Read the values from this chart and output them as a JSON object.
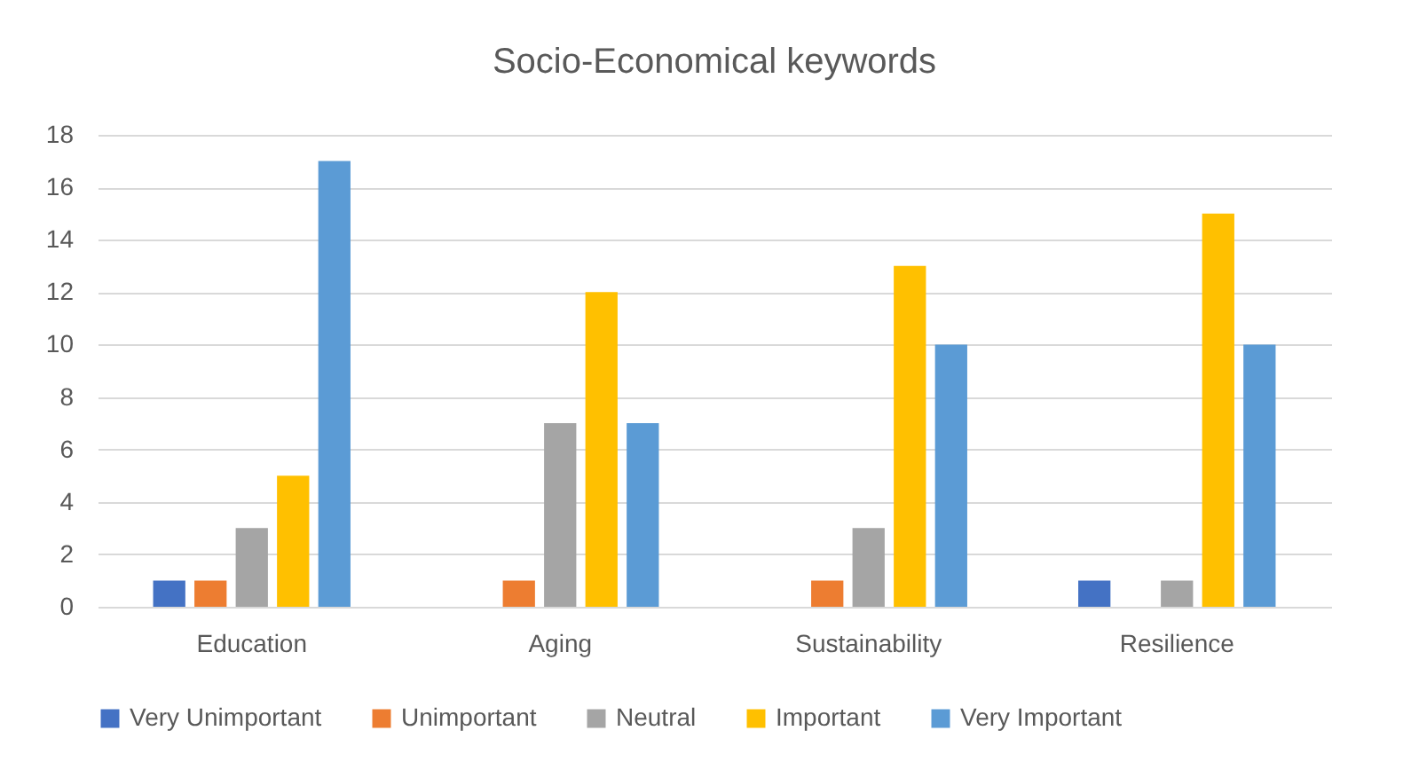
{
  "chart_data": {
    "type": "bar",
    "title": "Socio-Economical keywords",
    "categories": [
      "Education",
      "Aging",
      "Sustainability",
      "Resilience"
    ],
    "series": [
      {
        "name": "Very Unimportant",
        "color": "#4472c4",
        "values": [
          1,
          0,
          0,
          1
        ]
      },
      {
        "name": "Unimportant",
        "color": "#ed7d31",
        "values": [
          1,
          1,
          1,
          0
        ]
      },
      {
        "name": "Neutral",
        "color": "#a5a5a5",
        "values": [
          3,
          7,
          3,
          1
        ]
      },
      {
        "name": "Important",
        "color": "#ffc000",
        "values": [
          5,
          12,
          13,
          15
        ]
      },
      {
        "name": "Very Important",
        "color": "#5b9bd5",
        "values": [
          17,
          7,
          10,
          10
        ]
      }
    ],
    "ylim": [
      0,
      18
    ],
    "yticks": [
      0,
      2,
      4,
      6,
      8,
      10,
      12,
      14,
      16,
      18
    ],
    "grid": "y",
    "legend": "bottom"
  }
}
